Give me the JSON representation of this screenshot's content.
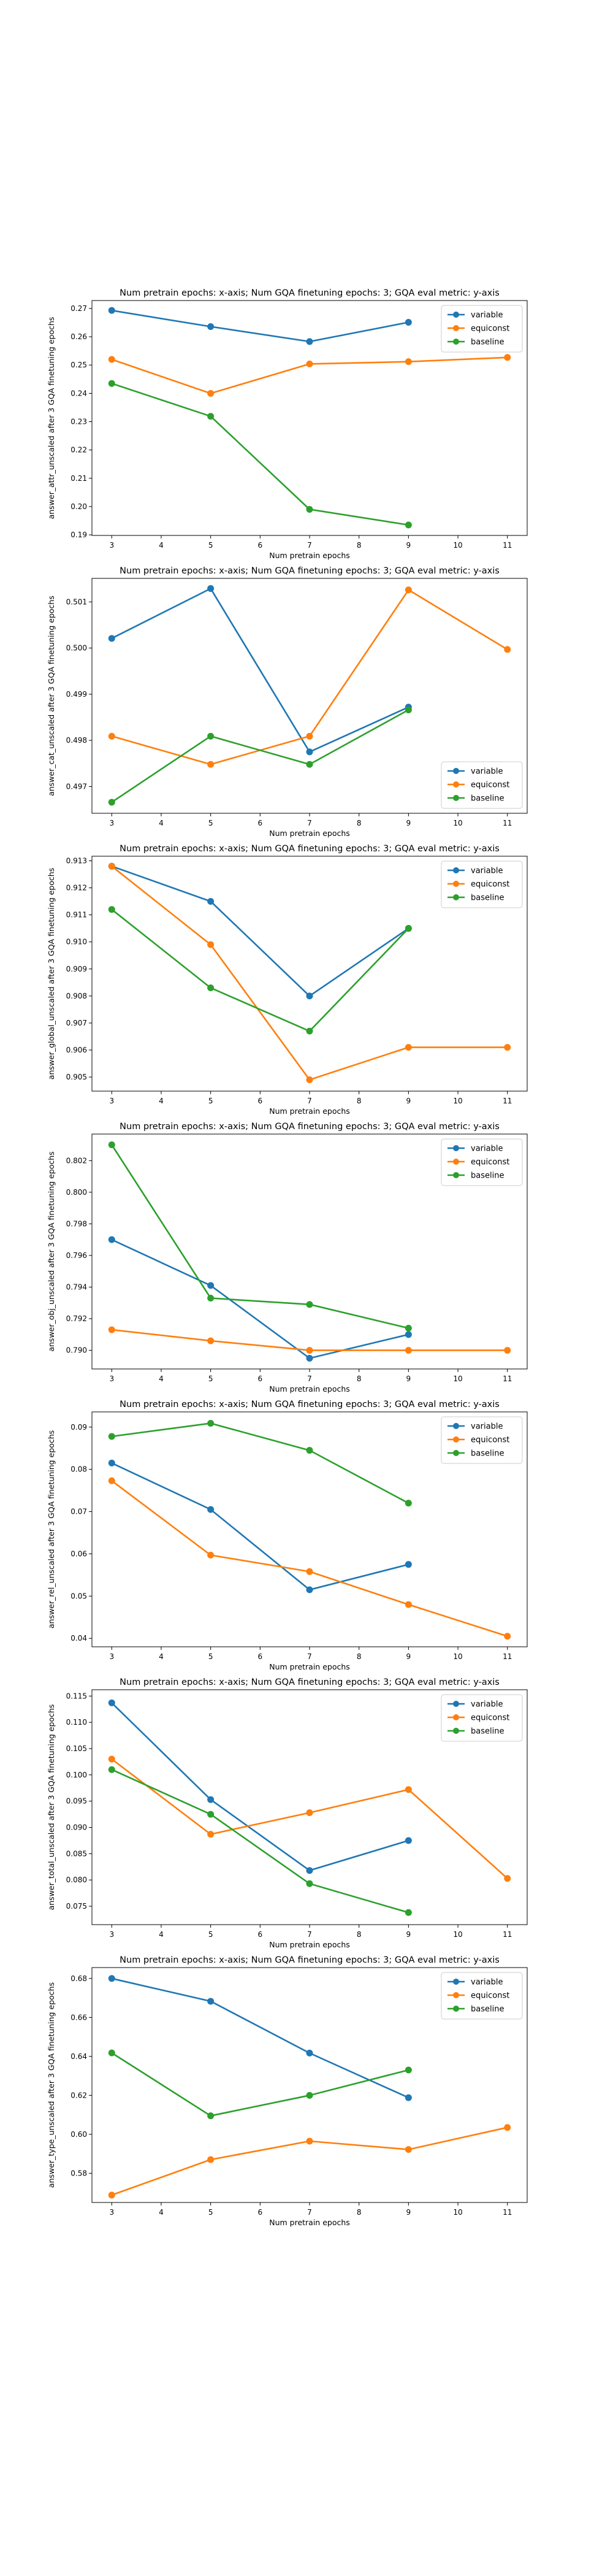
{
  "colors": {
    "variable": "#1f77b4",
    "equiconst": "#ff7f0e",
    "baseline": "#2ca02c"
  },
  "chart_data": [
    {
      "type": "line",
      "title": "Num pretrain epochs: x-axis; Num GQA finetuning epochs: 3; GQA eval metric: y-axis",
      "xlabel": "Num pretrain epochs",
      "ylabel": "answer_attr_unscaled after 3 GQA finetuning epochs",
      "xlim": [
        2.6,
        11.4
      ],
      "ylim": [
        0.1898,
        0.2728
      ],
      "xticks": [
        3,
        4,
        5,
        6,
        7,
        8,
        9,
        10,
        11
      ],
      "yticks": [
        0.19,
        0.2,
        0.21,
        0.22,
        0.23,
        0.24,
        0.25,
        0.26,
        0.27
      ],
      "ytick_labels": [
        "0.19",
        "0.20",
        "0.21",
        "0.22",
        "0.23",
        "0.24",
        "0.25",
        "0.26",
        "0.27"
      ],
      "legend_position": "top-right",
      "grid": false,
      "series": [
        {
          "name": "variable",
          "color": "#1f77b4",
          "x": [
            3,
            5,
            7,
            9
          ],
          "y": [
            0.2693,
            0.2636,
            0.2583,
            0.2651
          ]
        },
        {
          "name": "equiconst",
          "color": "#ff7f0e",
          "x": [
            3,
            5,
            7,
            9,
            11
          ],
          "y": [
            0.252,
            0.24,
            0.2504,
            0.2512,
            0.2527
          ]
        },
        {
          "name": "baseline",
          "color": "#2ca02c",
          "x": [
            3,
            5,
            7,
            9
          ],
          "y": [
            0.2435,
            0.2319,
            0.199,
            0.1935
          ]
        }
      ]
    },
    {
      "type": "line",
      "title": "Num pretrain epochs: x-axis; Num GQA finetuning epochs: 3; GQA eval metric: y-axis",
      "xlabel": "Num pretrain epochs",
      "ylabel": "answer_cat_unscaled after 3 GQA finetuning epochs",
      "xlim": [
        2.6,
        11.4
      ],
      "ylim": [
        0.49642,
        0.50151
      ],
      "xticks": [
        3,
        4,
        5,
        6,
        7,
        8,
        9,
        10,
        11
      ],
      "yticks": [
        0.497,
        0.498,
        0.499,
        0.5,
        0.501
      ],
      "ytick_labels": [
        "0.497",
        "0.498",
        "0.499",
        "0.500",
        "0.501"
      ],
      "legend_position": "bottom-right",
      "grid": false,
      "series": [
        {
          "name": "variable",
          "color": "#1f77b4",
          "x": [
            3,
            5,
            7,
            9
          ],
          "y": [
            0.50021,
            0.50129,
            0.49775,
            0.49872
          ]
        },
        {
          "name": "equiconst",
          "color": "#ff7f0e",
          "x": [
            3,
            5,
            7,
            9,
            11
          ],
          "y": [
            0.49809,
            0.49748,
            0.49809,
            0.50126,
            0.49997
          ]
        },
        {
          "name": "baseline",
          "color": "#2ca02c",
          "x": [
            3,
            5,
            7,
            9
          ],
          "y": [
            0.49666,
            0.49809,
            0.49748,
            0.49866
          ]
        }
      ]
    },
    {
      "type": "line",
      "title": "Num pretrain epochs: x-axis; Num GQA finetuning epochs: 3; GQA eval metric: y-axis",
      "xlabel": "Num pretrain epochs",
      "ylabel": "answer_global_unscaled after 3 GQA finetuning epochs",
      "xlim": [
        2.6,
        11.4
      ],
      "ylim": [
        0.90448,
        0.91317
      ],
      "xticks": [
        3,
        4,
        5,
        6,
        7,
        8,
        9,
        10,
        11
      ],
      "yticks": [
        0.905,
        0.906,
        0.907,
        0.908,
        0.909,
        0.91,
        0.911,
        0.912,
        0.913
      ],
      "ytick_labels": [
        "0.905",
        "0.906",
        "0.907",
        "0.908",
        "0.909",
        "0.910",
        "0.911",
        "0.912",
        "0.913"
      ],
      "legend_position": "top-right",
      "grid": false,
      "series": [
        {
          "name": "variable",
          "color": "#1f77b4",
          "x": [
            3,
            5,
            7,
            9
          ],
          "y": [
            0.9128,
            0.9115,
            0.908,
            0.9105
          ]
        },
        {
          "name": "equiconst",
          "color": "#ff7f0e",
          "x": [
            3,
            5,
            7,
            9,
            11
          ],
          "y": [
            0.9128,
            0.9099,
            0.9049,
            0.9061,
            0.9061
          ]
        },
        {
          "name": "baseline",
          "color": "#2ca02c",
          "x": [
            3,
            5,
            7,
            9
          ],
          "y": [
            0.9112,
            0.9083,
            0.9067,
            0.9105
          ]
        }
      ]
    },
    {
      "type": "line",
      "title": "Num pretrain epochs: x-axis; Num GQA finetuning epochs: 3; GQA eval metric: y-axis",
      "xlabel": "Num pretrain epochs",
      "ylabel": "answer_obj_unscaled after 3 GQA finetuning epochs",
      "xlim": [
        2.6,
        11.4
      ],
      "ylim": [
        0.78882,
        0.80368
      ],
      "xticks": [
        3,
        4,
        5,
        6,
        7,
        8,
        9,
        10,
        11
      ],
      "yticks": [
        0.79,
        0.792,
        0.794,
        0.796,
        0.798,
        0.8,
        0.802
      ],
      "ytick_labels": [
        "0.790",
        "0.792",
        "0.794",
        "0.796",
        "0.798",
        "0.800",
        "0.802"
      ],
      "legend_position": "top-right",
      "grid": false,
      "series": [
        {
          "name": "variable",
          "color": "#1f77b4",
          "x": [
            3,
            5,
            7,
            9
          ],
          "y": [
            0.797,
            0.7941,
            0.7895,
            0.791
          ]
        },
        {
          "name": "equiconst",
          "color": "#ff7f0e",
          "x": [
            3,
            5,
            7,
            9,
            11
          ],
          "y": [
            0.7913,
            0.7906,
            0.79,
            0.79,
            0.79
          ]
        },
        {
          "name": "baseline",
          "color": "#2ca02c",
          "x": [
            3,
            5,
            7,
            9
          ],
          "y": [
            0.803,
            0.7933,
            0.7929,
            0.7914
          ]
        }
      ]
    },
    {
      "type": "line",
      "title": "Num pretrain epochs: x-axis; Num GQA finetuning epochs: 3; GQA eval metric: y-axis",
      "xlabel": "Num pretrain epochs",
      "ylabel": "answer_rel_unscaled after 3 GQA finetuning epochs",
      "xlim": [
        2.6,
        11.4
      ],
      "ylim": [
        0.038,
        0.0936
      ],
      "xticks": [
        3,
        4,
        5,
        6,
        7,
        8,
        9,
        10,
        11
      ],
      "yticks": [
        0.04,
        0.05,
        0.06,
        0.07,
        0.08,
        0.09
      ],
      "ytick_labels": [
        "0.04",
        "0.05",
        "0.06",
        "0.07",
        "0.08",
        "0.09"
      ],
      "legend_position": "top-right",
      "grid": false,
      "series": [
        {
          "name": "variable",
          "color": "#1f77b4",
          "x": [
            3,
            5,
            7,
            9
          ],
          "y": [
            0.0815,
            0.0705,
            0.0515,
            0.0575
          ]
        },
        {
          "name": "equiconst",
          "color": "#ff7f0e",
          "x": [
            3,
            5,
            7,
            9,
            11
          ],
          "y": [
            0.0773,
            0.0597,
            0.0558,
            0.048,
            0.0405
          ]
        },
        {
          "name": "baseline",
          "color": "#2ca02c",
          "x": [
            3,
            5,
            7,
            9
          ],
          "y": [
            0.0878,
            0.0909,
            0.0845,
            0.072
          ]
        }
      ]
    },
    {
      "type": "line",
      "title": "Num pretrain epochs: x-axis; Num GQA finetuning epochs: 3; GQA eval metric: y-axis",
      "xlabel": "Num pretrain epochs",
      "ylabel": "answer_total_unscaled after 3 GQA finetuning epochs",
      "xlim": [
        2.6,
        11.4
      ],
      "ylim": [
        0.0715,
        0.1162
      ],
      "xticks": [
        3,
        4,
        5,
        6,
        7,
        8,
        9,
        10,
        11
      ],
      "yticks": [
        0.075,
        0.08,
        0.085,
        0.09,
        0.095,
        0.1,
        0.105,
        0.11,
        0.115
      ],
      "ytick_labels": [
        "0.075",
        "0.080",
        "0.085",
        "0.090",
        "0.095",
        "0.100",
        "0.105",
        "0.110",
        "0.115"
      ],
      "legend_position": "top-right",
      "grid": false,
      "series": [
        {
          "name": "variable",
          "color": "#1f77b4",
          "x": [
            3,
            5,
            7,
            9
          ],
          "y": [
            0.1137,
            0.0953,
            0.0818,
            0.0875
          ]
        },
        {
          "name": "equiconst",
          "color": "#ff7f0e",
          "x": [
            3,
            5,
            7,
            9,
            11
          ],
          "y": [
            0.103,
            0.0887,
            0.0928,
            0.0972,
            0.0803
          ]
        },
        {
          "name": "baseline",
          "color": "#2ca02c",
          "x": [
            3,
            5,
            7,
            9
          ],
          "y": [
            0.101,
            0.0925,
            0.0793,
            0.0738
          ]
        }
      ]
    },
    {
      "type": "line",
      "title": "Num pretrain epochs: x-axis; Num GQA finetuning epochs: 3; GQA eval metric: y-axis",
      "xlabel": "Num pretrain epochs",
      "ylabel": "answer_type_unscaled after 3 GQA finetuning epochs",
      "xlim": [
        2.6,
        11.4
      ],
      "ylim": [
        0.565,
        0.6856
      ],
      "xticks": [
        3,
        4,
        5,
        6,
        7,
        8,
        9,
        10,
        11
      ],
      "yticks": [
        0.58,
        0.6,
        0.62,
        0.64,
        0.66,
        0.68
      ],
      "ytick_labels": [
        "0.58",
        "0.60",
        "0.62",
        "0.64",
        "0.66",
        "0.68"
      ],
      "legend_position": "top-right",
      "grid": false,
      "series": [
        {
          "name": "variable",
          "color": "#1f77b4",
          "x": [
            3,
            5,
            7,
            9
          ],
          "y": [
            0.68,
            0.6683,
            0.6417,
            0.6188
          ]
        },
        {
          "name": "equiconst",
          "color": "#ff7f0e",
          "x": [
            3,
            5,
            7,
            9,
            11
          ],
          "y": [
            0.5688,
            0.587,
            0.5965,
            0.5922,
            0.6035
          ]
        },
        {
          "name": "baseline",
          "color": "#2ca02c",
          "x": [
            3,
            5,
            7,
            9
          ],
          "y": [
            0.6418,
            0.6095,
            0.62,
            0.633
          ]
        }
      ]
    }
  ]
}
